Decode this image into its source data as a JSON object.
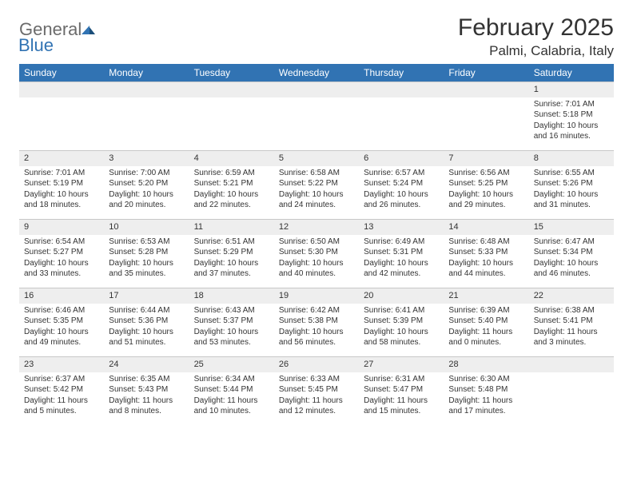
{
  "logo": {
    "text1": "General",
    "text2": "Blue"
  },
  "title": "February 2025",
  "location": "Palmi, Calabria, Italy",
  "colors": {
    "header_bg": "#3173b3",
    "header_fg": "#ffffff",
    "daynum_bg": "#eeeeee",
    "border": "#c8c8c8",
    "text": "#333333",
    "logo_gray": "#6b6b6b",
    "logo_blue": "#3173b3"
  },
  "weekdays": [
    "Sunday",
    "Monday",
    "Tuesday",
    "Wednesday",
    "Thursday",
    "Friday",
    "Saturday"
  ],
  "weeks": [
    [
      null,
      null,
      null,
      null,
      null,
      null,
      {
        "n": "1",
        "sr": "7:01 AM",
        "ss": "5:18 PM",
        "dl": "10 hours and 16 minutes."
      }
    ],
    [
      {
        "n": "2",
        "sr": "7:01 AM",
        "ss": "5:19 PM",
        "dl": "10 hours and 18 minutes."
      },
      {
        "n": "3",
        "sr": "7:00 AM",
        "ss": "5:20 PM",
        "dl": "10 hours and 20 minutes."
      },
      {
        "n": "4",
        "sr": "6:59 AM",
        "ss": "5:21 PM",
        "dl": "10 hours and 22 minutes."
      },
      {
        "n": "5",
        "sr": "6:58 AM",
        "ss": "5:22 PM",
        "dl": "10 hours and 24 minutes."
      },
      {
        "n": "6",
        "sr": "6:57 AM",
        "ss": "5:24 PM",
        "dl": "10 hours and 26 minutes."
      },
      {
        "n": "7",
        "sr": "6:56 AM",
        "ss": "5:25 PM",
        "dl": "10 hours and 29 minutes."
      },
      {
        "n": "8",
        "sr": "6:55 AM",
        "ss": "5:26 PM",
        "dl": "10 hours and 31 minutes."
      }
    ],
    [
      {
        "n": "9",
        "sr": "6:54 AM",
        "ss": "5:27 PM",
        "dl": "10 hours and 33 minutes."
      },
      {
        "n": "10",
        "sr": "6:53 AM",
        "ss": "5:28 PM",
        "dl": "10 hours and 35 minutes."
      },
      {
        "n": "11",
        "sr": "6:51 AM",
        "ss": "5:29 PM",
        "dl": "10 hours and 37 minutes."
      },
      {
        "n": "12",
        "sr": "6:50 AM",
        "ss": "5:30 PM",
        "dl": "10 hours and 40 minutes."
      },
      {
        "n": "13",
        "sr": "6:49 AM",
        "ss": "5:31 PM",
        "dl": "10 hours and 42 minutes."
      },
      {
        "n": "14",
        "sr": "6:48 AM",
        "ss": "5:33 PM",
        "dl": "10 hours and 44 minutes."
      },
      {
        "n": "15",
        "sr": "6:47 AM",
        "ss": "5:34 PM",
        "dl": "10 hours and 46 minutes."
      }
    ],
    [
      {
        "n": "16",
        "sr": "6:46 AM",
        "ss": "5:35 PM",
        "dl": "10 hours and 49 minutes."
      },
      {
        "n": "17",
        "sr": "6:44 AM",
        "ss": "5:36 PM",
        "dl": "10 hours and 51 minutes."
      },
      {
        "n": "18",
        "sr": "6:43 AM",
        "ss": "5:37 PM",
        "dl": "10 hours and 53 minutes."
      },
      {
        "n": "19",
        "sr": "6:42 AM",
        "ss": "5:38 PM",
        "dl": "10 hours and 56 minutes."
      },
      {
        "n": "20",
        "sr": "6:41 AM",
        "ss": "5:39 PM",
        "dl": "10 hours and 58 minutes."
      },
      {
        "n": "21",
        "sr": "6:39 AM",
        "ss": "5:40 PM",
        "dl": "11 hours and 0 minutes."
      },
      {
        "n": "22",
        "sr": "6:38 AM",
        "ss": "5:41 PM",
        "dl": "11 hours and 3 minutes."
      }
    ],
    [
      {
        "n": "23",
        "sr": "6:37 AM",
        "ss": "5:42 PM",
        "dl": "11 hours and 5 minutes."
      },
      {
        "n": "24",
        "sr": "6:35 AM",
        "ss": "5:43 PM",
        "dl": "11 hours and 8 minutes."
      },
      {
        "n": "25",
        "sr": "6:34 AM",
        "ss": "5:44 PM",
        "dl": "11 hours and 10 minutes."
      },
      {
        "n": "26",
        "sr": "6:33 AM",
        "ss": "5:45 PM",
        "dl": "11 hours and 12 minutes."
      },
      {
        "n": "27",
        "sr": "6:31 AM",
        "ss": "5:47 PM",
        "dl": "11 hours and 15 minutes."
      },
      {
        "n": "28",
        "sr": "6:30 AM",
        "ss": "5:48 PM",
        "dl": "11 hours and 17 minutes."
      },
      null
    ]
  ],
  "labels": {
    "sunrise": "Sunrise:",
    "sunset": "Sunset:",
    "daylight": "Daylight:"
  }
}
